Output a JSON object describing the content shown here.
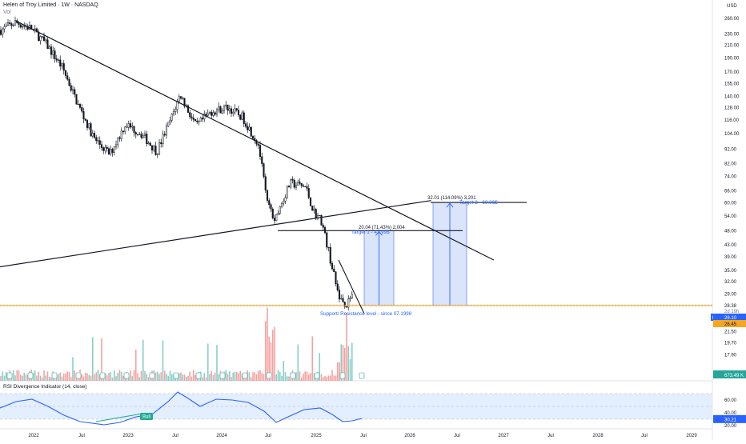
{
  "header": {
    "title": "Helen of Troy Limited · 1W · NASDAQ",
    "vol_label": "Vol",
    "currency": "USD"
  },
  "rsi": {
    "label": "RSI Divergence Indicator (14, close)",
    "bull_label": "Bull",
    "value_label": "30.21",
    "y_ticks": [
      "60.00",
      "40.00",
      "20.00"
    ]
  },
  "price_axis": {
    "ticks": [
      "260.00",
      "230.00",
      "210.00",
      "190.00",
      "170.00",
      "155.00",
      "140.00",
      "128.00",
      "116.00",
      "104.00",
      "92.00",
      "82.00",
      "74.00",
      "66.00",
      "60.00",
      "54.00",
      "48.00",
      "43.00",
      "39.00",
      "35.00",
      "32.00",
      "29.00",
      "26.45",
      "23.50",
      "21.50",
      "19.70",
      "17.90"
    ],
    "last_price_top": "28.38",
    "countdown": "2d 19h",
    "post_label": "Post",
    "post_price": "28.10",
    "level_price": "26.45",
    "volume_badge": "673.49 K"
  },
  "time_axis": [
    "2022",
    "Jul",
    "2023",
    "Jul",
    "2024",
    "Jul",
    "2025",
    "Jul",
    "2026",
    "Jul",
    "2027",
    "Jul",
    "2028",
    "Jul",
    "2029"
  ],
  "annotations": {
    "support_label": "Support/ Resistance level - since 07.1998",
    "target1_stats": "20.04 (71.43%) 2,004",
    "target1_label": "Target 1 - 47.99$",
    "target2_stats": "32.01 (114.09%) 3,201",
    "target2_label": "Target 2 - 60.06$"
  },
  "chart_data": {
    "type": "candlestick",
    "symbol": "Helen of Troy Limited",
    "interval": "1W",
    "exchange": "NASDAQ",
    "y_scale": "log",
    "ylim": [
      16.5,
      265
    ],
    "x_range": [
      "2021-09",
      "2029-06"
    ],
    "weekly_close_path": [
      {
        "date": "2021-09",
        "close": 236
      },
      {
        "date": "2021-11",
        "close": 252
      },
      {
        "date": "2022-01",
        "close": 240
      },
      {
        "date": "2022-03",
        "close": 210
      },
      {
        "date": "2022-05",
        "close": 175
      },
      {
        "date": "2022-07",
        "close": 130
      },
      {
        "date": "2022-09",
        "close": 100
      },
      {
        "date": "2022-11",
        "close": 88
      },
      {
        "date": "2023-01",
        "close": 112
      },
      {
        "date": "2023-03",
        "close": 104
      },
      {
        "date": "2023-05",
        "close": 90
      },
      {
        "date": "2023-07",
        "close": 120
      },
      {
        "date": "2023-08",
        "close": 142
      },
      {
        "date": "2023-10",
        "close": 110
      },
      {
        "date": "2023-12",
        "close": 124
      },
      {
        "date": "2024-02",
        "close": 128
      },
      {
        "date": "2024-04",
        "close": 118
      },
      {
        "date": "2024-06",
        "close": 95
      },
      {
        "date": "2024-07",
        "close": 62
      },
      {
        "date": "2024-08",
        "close": 52
      },
      {
        "date": "2024-10",
        "close": 70
      },
      {
        "date": "2024-12",
        "close": 68
      },
      {
        "date": "2025-01",
        "close": 56
      },
      {
        "date": "2025-02",
        "close": 52
      },
      {
        "date": "2025-03",
        "close": 40
      },
      {
        "date": "2025-04",
        "close": 30
      },
      {
        "date": "2025-05",
        "close": 26
      },
      {
        "date": "2025-06",
        "close": 28.38
      }
    ],
    "last_price": 28.38,
    "post_price": 28.1,
    "trendlines": [
      {
        "name": "descending resistance",
        "from": {
          "date": "2021-11",
          "price": 255
        },
        "to": {
          "date": "2026-12",
          "price": 38
        }
      },
      {
        "name": "rising support",
        "from": {
          "date": "2021-09",
          "price": 36
        },
        "to": {
          "date": "2026-04",
          "price": 61
        }
      }
    ],
    "horizontal_levels": [
      26.45,
      48.0,
      60.06
    ],
    "measurements": [
      {
        "label": "Target 1 - 47.99$",
        "from": 28.0,
        "to": 47.99,
        "change": 20.04,
        "percent": 71.43,
        "ticks": 2004
      },
      {
        "label": "Target 2 - 60.06$",
        "from": 28.0,
        "to": 60.06,
        "change": 32.01,
        "percent": 114.09,
        "ticks": 3201
      }
    ],
    "volume_last": "673.49 K",
    "rsi": {
      "period": 14,
      "source": "close",
      "last": 30.21,
      "ylim": [
        20,
        70
      ],
      "bands": [
        30,
        70
      ]
    },
    "colors": {
      "up": "#26a69a",
      "down": "#ef5350",
      "level": "#f5a623",
      "measure": "#2962ff",
      "measure_fill": "#d6e2fb",
      "rsi": "#2962ff",
      "rsi_band": "#e3eeff",
      "bull": "#22ab94"
    }
  }
}
